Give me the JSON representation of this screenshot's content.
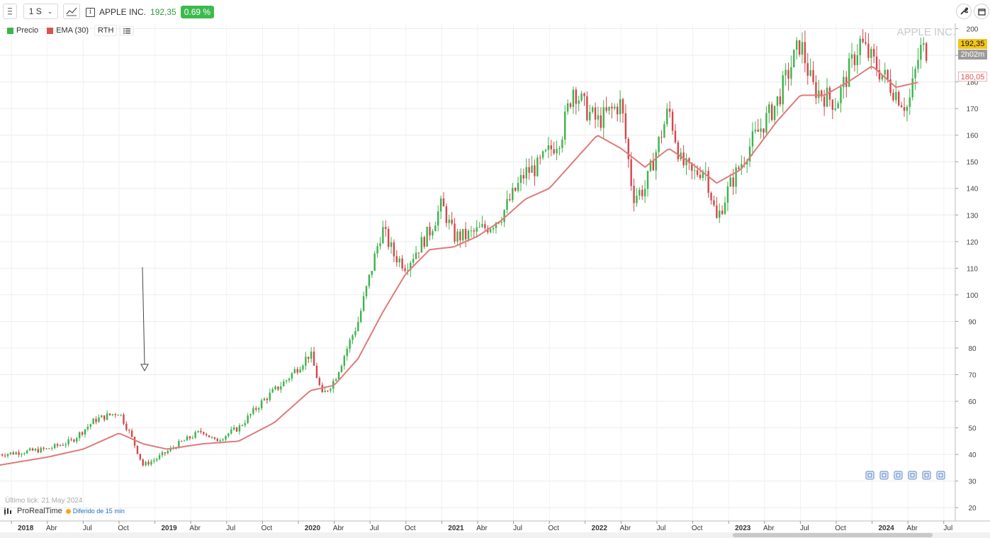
{
  "toolbar": {
    "timeframe": "1 S",
    "instrument": "APPLE INC.",
    "last_price": "192,35",
    "change": "0.69 %"
  },
  "legend": [
    {
      "label": "Precio",
      "color": "#3cb44b"
    },
    {
      "label": "EMA (30)",
      "color": "#d9534f"
    },
    {
      "label": "RTH",
      "color": ""
    }
  ],
  "watermark": "APPLE INC.",
  "price_tag": {
    "price": "192,35",
    "countdown": "2h02m",
    "ema": "180,05"
  },
  "footer": {
    "last_tick": "Último tick: 21 May 2024",
    "brand": "ProRealTime",
    "delay": "Diferido de 15 min"
  },
  "colors": {
    "up": "#3cb44b",
    "down": "#d6454b",
    "ema": "#e07a7a",
    "price_tag_bg": "#f5c518"
  },
  "chart_data": {
    "type": "line",
    "title": "APPLE INC.",
    "interval": "1 S",
    "x_ticks": [
      "2018",
      "Abr",
      "Jul",
      "Oct",
      "2019",
      "Abr",
      "Jul",
      "Oct",
      "2020",
      "Abr",
      "Jul",
      "Oct",
      "2021",
      "Abr",
      "Jul",
      "Oct",
      "2022",
      "Abr",
      "Jul",
      "Oct",
      "2023",
      "Abr",
      "Jul",
      "Oct",
      "2024",
      "Abr",
      "Jul"
    ],
    "y_ticks": [
      20,
      30,
      40,
      50,
      60,
      70,
      80,
      90,
      100,
      110,
      120,
      130,
      140,
      150,
      160,
      170,
      180,
      190,
      200
    ],
    "ylim": [
      15,
      202
    ],
    "series": [
      {
        "name": "Precio",
        "style": "weekly candlestick closes",
        "x": [
          "2017-12",
          "2018-02",
          "2018-04",
          "2018-06",
          "2018-08",
          "2018-10",
          "2018-11",
          "2018-12",
          "2019-01",
          "2019-03",
          "2019-05",
          "2019-06",
          "2019-08",
          "2019-10",
          "2019-12",
          "2020-02",
          "2020-03",
          "2020-04",
          "2020-06",
          "2020-08",
          "2020-09",
          "2020-10",
          "2020-12",
          "2021-01",
          "2021-02",
          "2021-03",
          "2021-05",
          "2021-06",
          "2021-08",
          "2021-09",
          "2021-11",
          "2021-12",
          "2022-01",
          "2022-02",
          "2022-04",
          "2022-05",
          "2022-06",
          "2022-08",
          "2022-09",
          "2022-10",
          "2022-11",
          "2022-12",
          "2023-01",
          "2023-03",
          "2023-05",
          "2023-07",
          "2023-08",
          "2023-09",
          "2023-10",
          "2023-12",
          "2024-01",
          "2024-02",
          "2024-04",
          "2024-05"
        ],
        "values": [
          40,
          41,
          42,
          45,
          53,
          56,
          47,
          36,
          38,
          44,
          49,
          45,
          50,
          60,
          68,
          78,
          62,
          68,
          90,
          125,
          115,
          111,
          124,
          134,
          122,
          122,
          126,
          130,
          146,
          148,
          160,
          178,
          170,
          165,
          172,
          137,
          140,
          170,
          150,
          145,
          148,
          128,
          140,
          158,
          172,
          195,
          178,
          175,
          172,
          195,
          188,
          182,
          170,
          192
        ]
      },
      {
        "name": "EMA (30)",
        "x": [
          "2017-12",
          "2018-04",
          "2018-07",
          "2018-10",
          "2018-12",
          "2019-02",
          "2019-05",
          "2019-08",
          "2019-11",
          "2020-02",
          "2020-04",
          "2020-06",
          "2020-08",
          "2020-10",
          "2020-12",
          "2021-02",
          "2021-04",
          "2021-06",
          "2021-08",
          "2021-10",
          "2021-12",
          "2022-02",
          "2022-04",
          "2022-06",
          "2022-08",
          "2022-10",
          "2022-12",
          "2023-02",
          "2023-05",
          "2023-07",
          "2023-09",
          "2023-11",
          "2024-01",
          "2024-03",
          "2024-05"
        ],
        "values": [
          36,
          39,
          42,
          48,
          44,
          42,
          44,
          45,
          52,
          64,
          66,
          76,
          93,
          108,
          117,
          118,
          122,
          128,
          136,
          140,
          150,
          160,
          155,
          148,
          155,
          149,
          142,
          147,
          165,
          175,
          175,
          180,
          186,
          178,
          180
        ]
      }
    ]
  }
}
